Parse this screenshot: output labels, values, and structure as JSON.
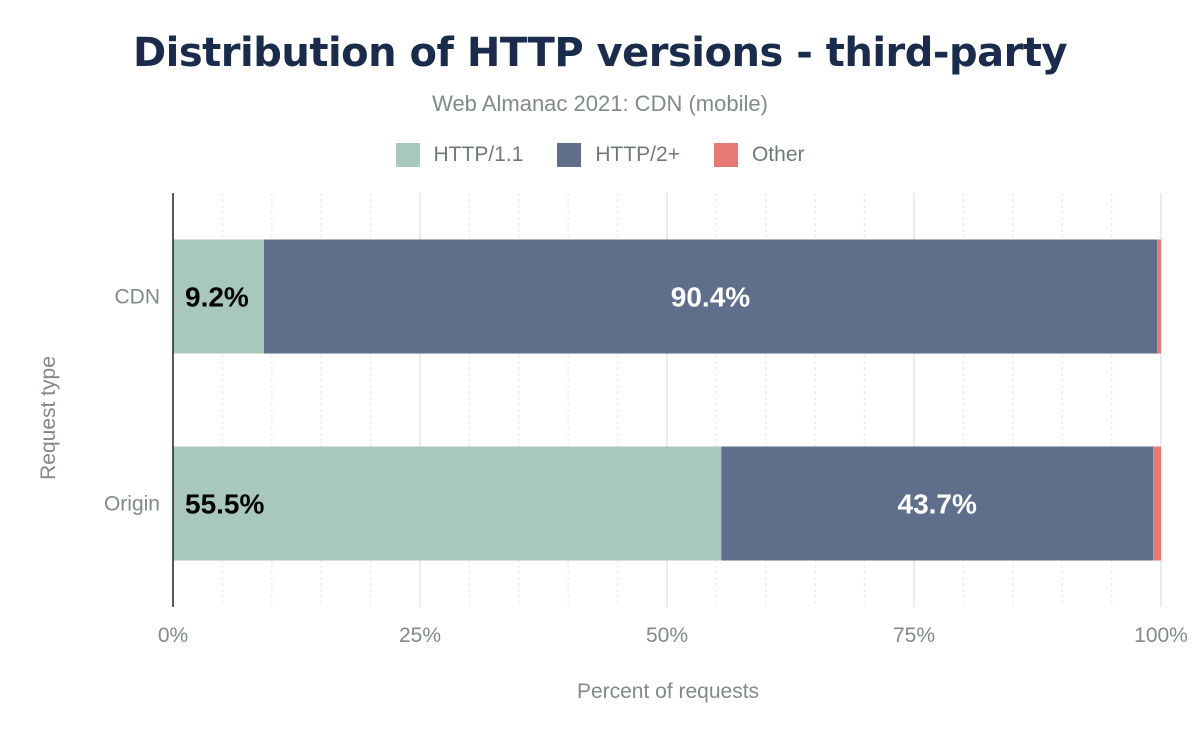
{
  "chart_data": {
    "type": "bar",
    "stacked": true,
    "orientation": "horizontal",
    "title": "Distribution of HTTP versions - third-party",
    "subtitle": "Web Almanac 2021: CDN (mobile)",
    "xlabel": "Percent of requests",
    "ylabel": "Request type",
    "categories": [
      "CDN",
      "Origin"
    ],
    "series": [
      {
        "name": "HTTP/1.1",
        "color": "#a8c8bb",
        "values": [
          9.2,
          55.5
        ],
        "labels": [
          "9.2%",
          "55.5%"
        ],
        "label_color": "#000000"
      },
      {
        "name": "HTTP/2+",
        "color": "#5f6f8b",
        "values": [
          90.4,
          43.7
        ],
        "labels": [
          "90.4%",
          "43.7%"
        ],
        "label_color": "#ffffff"
      },
      {
        "name": "Other",
        "color": "#e57a73",
        "values": [
          0.4,
          0.8
        ],
        "labels": [
          "",
          ""
        ]
      }
    ],
    "xlim": [
      0,
      100
    ],
    "xticks": [
      "0%",
      "25%",
      "50%",
      "75%",
      "100%"
    ],
    "grid": true,
    "legend_position": "top"
  }
}
